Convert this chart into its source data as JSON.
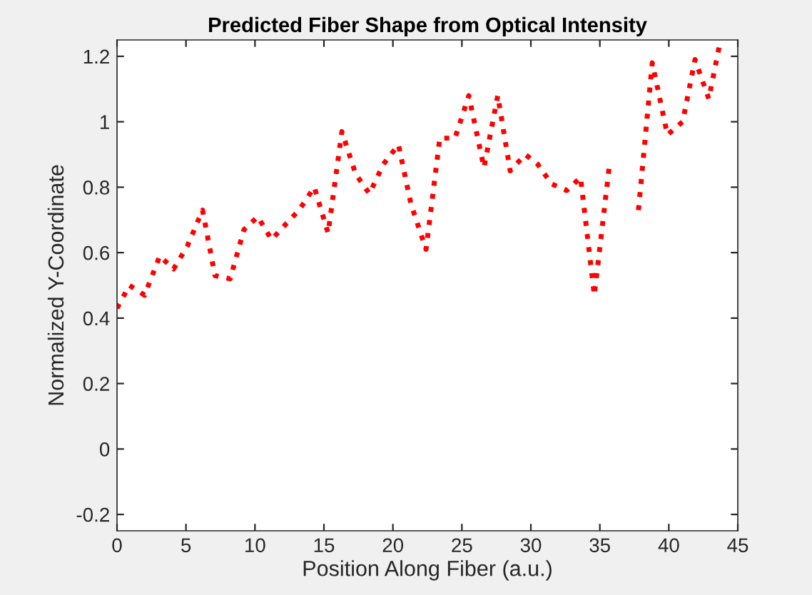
{
  "chart_data": {
    "type": "line",
    "title": "Predicted Fiber Shape from Optical Intensity",
    "xlabel": "Position Along Fiber (a.u.)",
    "ylabel": "Normalized Y-Coordinate",
    "series": [
      {
        "color": "#ff0000",
        "x": [
          0,
          0.9,
          2.0,
          3.1,
          4.1,
          5.1,
          6.2,
          7.1,
          8.2,
          9.2,
          10.2,
          11.2,
          12.3,
          13.2,
          14.3,
          15.3,
          16.3,
          17.3,
          18.3,
          19.3,
          20.4,
          21.3,
          22.4,
          23.4,
          24.5,
          25.5,
          26.6,
          27.6,
          28.5,
          29.6,
          30.5,
          31.5,
          32.6,
          33.6,
          34.6,
          35.7,
          36.7,
          37.8,
          38.8,
          39.9,
          41.0,
          41.9,
          42.9,
          43.7
        ],
        "values": [
          0.43,
          0.5,
          0.47,
          0.59,
          0.55,
          0.62,
          0.73,
          0.53,
          0.52,
          0.67,
          0.71,
          0.64,
          0.69,
          0.73,
          0.8,
          0.66,
          0.97,
          0.84,
          0.78,
          0.87,
          0.93,
          0.75,
          0.61,
          0.95,
          0.95,
          1.08,
          0.86,
          1.08,
          0.85,
          0.9,
          0.87,
          0.81,
          0.79,
          0.83,
          0.47,
          0.87,
          null,
          0.73,
          1.18,
          0.96,
          1.0,
          1.19,
          1.07,
          1.24
        ]
      }
    ],
    "xlim": [
      0,
      45
    ],
    "xticks": [
      0,
      5,
      10,
      15,
      20,
      25,
      30,
      35,
      40,
      45
    ],
    "ylim": [
      -0.25,
      1.25
    ],
    "yticks": [
      -0.2,
      0,
      0.2,
      0.4,
      0.6,
      0.8,
      1,
      1.2
    ],
    "grid": false,
    "legend": false,
    "marker": "none",
    "line_style": "dotted"
  }
}
